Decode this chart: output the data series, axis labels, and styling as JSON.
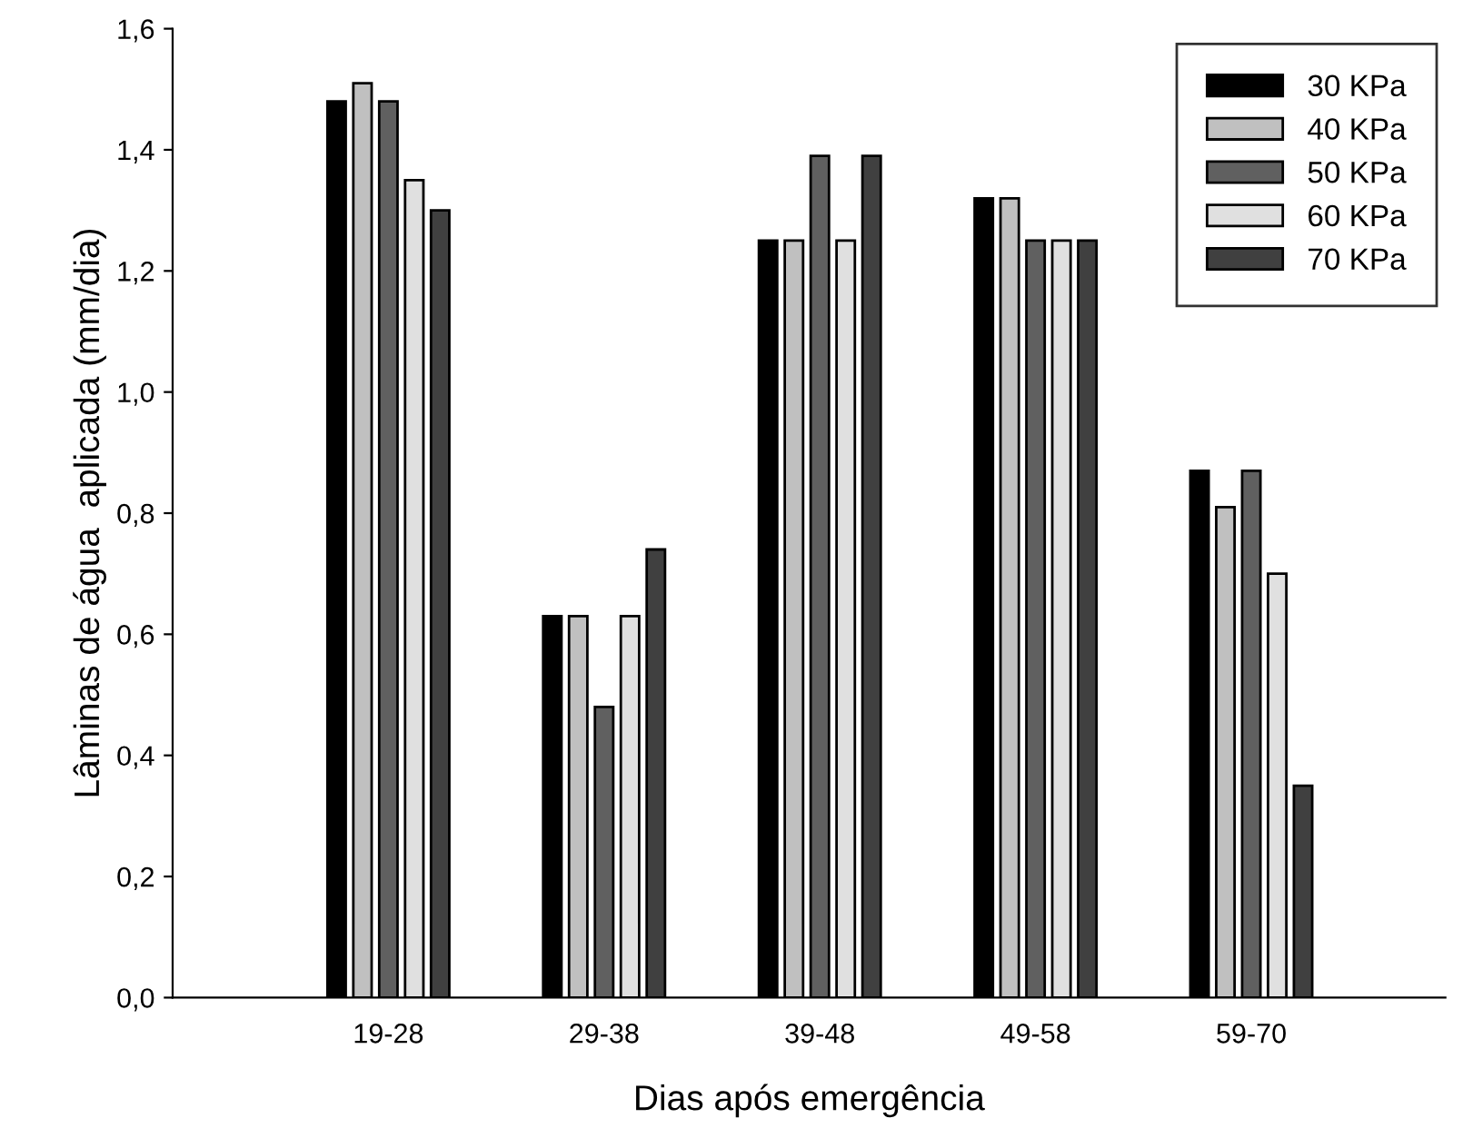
{
  "chart_data": {
    "type": "bar",
    "xlabel": "Dias após emergência",
    "ylabel": "Lâminas de água  aplicada (mm/dia)",
    "categories": [
      "19-28",
      "29-38",
      "39-48",
      "49-58",
      "59-70"
    ],
    "series": [
      {
        "name": "30 KPa",
        "color": "#000000",
        "values": [
          1.48,
          0.63,
          1.25,
          1.32,
          0.87
        ]
      },
      {
        "name": "40 KPa",
        "color": "#c0c0c0",
        "values": [
          1.51,
          0.63,
          1.25,
          1.32,
          0.81
        ]
      },
      {
        "name": "50 KPa",
        "color": "#606060",
        "values": [
          1.48,
          0.48,
          1.39,
          1.25,
          0.87
        ]
      },
      {
        "name": "60 KPa",
        "color": "#e0e0e0",
        "values": [
          1.35,
          0.63,
          1.25,
          1.25,
          0.7
        ]
      },
      {
        "name": "70 KPa",
        "color": "#404040",
        "values": [
          1.3,
          0.74,
          1.39,
          1.25,
          0.35
        ]
      }
    ],
    "ylim": [
      0,
      1.6
    ],
    "yticks": [
      {
        "value": 0,
        "label": "0,0"
      },
      {
        "value": 0.2,
        "label": "0,2"
      },
      {
        "value": 0.4,
        "label": "0,4"
      },
      {
        "value": 0.6,
        "label": "0,6"
      },
      {
        "value": 0.8,
        "label": "0,8"
      },
      {
        "value": 1.0,
        "label": "1,0"
      },
      {
        "value": 1.2,
        "label": "1,2"
      },
      {
        "value": 1.4,
        "label": "1,4"
      },
      {
        "value": 1.6,
        "label": "1,6"
      }
    ],
    "grid": false,
    "legend": "top right"
  }
}
